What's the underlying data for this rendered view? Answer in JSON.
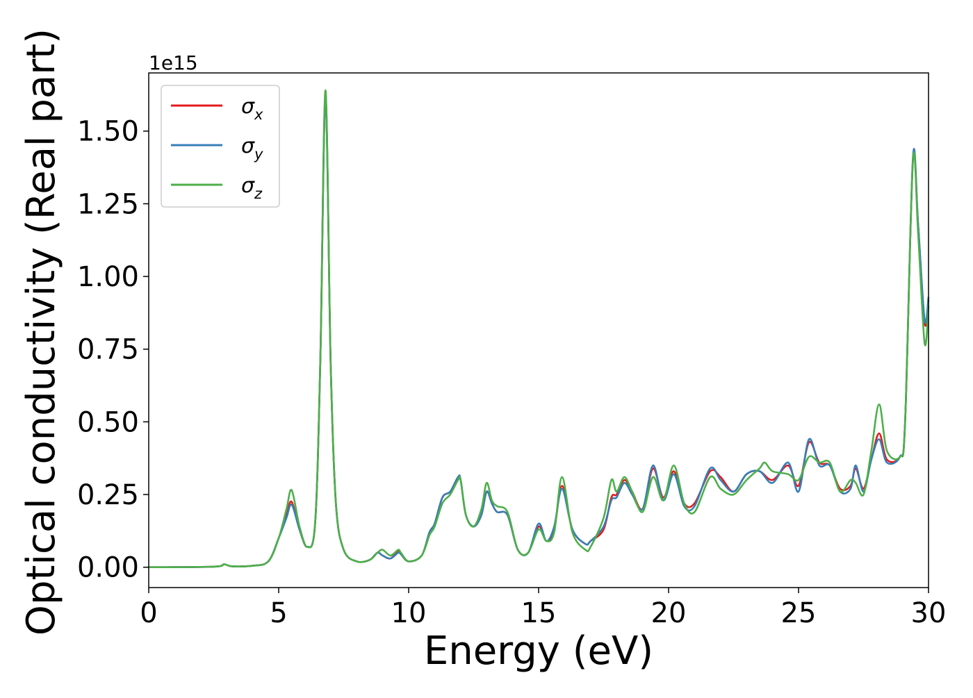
{
  "chart_data": {
    "type": "line",
    "xlabel": "Energy (eV)",
    "ylabel": "Optical conductivity (Real part)",
    "y_offset_text": "1e15",
    "xlim": [
      0,
      30
    ],
    "ylim": [
      -0.07,
      1.7
    ],
    "x_ticks": [
      0,
      5,
      10,
      15,
      20,
      25,
      30
    ],
    "x_tick_labels": [
      "0",
      "5",
      "10",
      "15",
      "20",
      "25",
      "30"
    ],
    "y_ticks": [
      0,
      0.25,
      0.5,
      0.75,
      1.0,
      1.25,
      1.5
    ],
    "y_tick_labels": [
      "0.00",
      "0.25",
      "0.50",
      "0.75",
      "1.00",
      "1.25",
      "1.50"
    ],
    "grid": false,
    "legend_position": "top-left",
    "series": [
      {
        "name": "σx",
        "name_base": "σ",
        "name_sub": "x",
        "color": "#e41a1c",
        "x": [
          0,
          2.5,
          2.9,
          3.2,
          4.0,
          4.6,
          5.0,
          5.3,
          5.5,
          5.8,
          6.1,
          6.4,
          6.6,
          6.8,
          7.0,
          7.2,
          7.5,
          8.0,
          8.5,
          8.8,
          9.0,
          9.3,
          9.6,
          9.7,
          10.0,
          10.5,
          10.8,
          11.0,
          11.3,
          11.6,
          11.9,
          12.0,
          12.2,
          12.5,
          12.8,
          13.0,
          13.2,
          13.4,
          13.8,
          14.2,
          14.6,
          15.0,
          15.3,
          15.6,
          15.9,
          16.3,
          16.8,
          17.0,
          17.5,
          17.8,
          18.0,
          18.3,
          18.6,
          19.0,
          19.4,
          19.8,
          20.2,
          20.6,
          21.0,
          21.6,
          22.0,
          22.5,
          23.0,
          23.5,
          24.0,
          24.6,
          25.0,
          25.4,
          25.8,
          26.2,
          26.6,
          27.0,
          27.2,
          27.5,
          27.8,
          28.1,
          28.4,
          28.9,
          29.1,
          29.4,
          29.6,
          29.85,
          30.0
        ],
        "y": [
          0,
          0.002,
          0.01,
          0.003,
          0.005,
          0.02,
          0.1,
          0.18,
          0.225,
          0.13,
          0.07,
          0.15,
          0.7,
          1.62,
          0.7,
          0.22,
          0.06,
          0.02,
          0.025,
          0.05,
          0.04,
          0.03,
          0.055,
          0.045,
          0.02,
          0.04,
          0.12,
          0.15,
          0.24,
          0.26,
          0.31,
          0.3,
          0.18,
          0.14,
          0.18,
          0.26,
          0.22,
          0.19,
          0.18,
          0.06,
          0.05,
          0.14,
          0.09,
          0.13,
          0.28,
          0.13,
          0.08,
          0.09,
          0.13,
          0.24,
          0.25,
          0.3,
          0.26,
          0.2,
          0.34,
          0.24,
          0.33,
          0.22,
          0.22,
          0.33,
          0.31,
          0.26,
          0.32,
          0.33,
          0.3,
          0.35,
          0.28,
          0.43,
          0.36,
          0.35,
          0.27,
          0.28,
          0.34,
          0.27,
          0.37,
          0.46,
          0.37,
          0.38,
          0.5,
          1.4,
          1.18,
          0.84,
          0.92
        ]
      },
      {
        "name": "σy",
        "name_base": "σ",
        "name_sub": "y",
        "color": "#377eb8",
        "x": [
          0,
          2.5,
          2.9,
          3.2,
          4.0,
          4.6,
          5.0,
          5.3,
          5.5,
          5.8,
          6.1,
          6.4,
          6.6,
          6.8,
          7.0,
          7.2,
          7.5,
          8.0,
          8.5,
          8.8,
          9.0,
          9.3,
          9.6,
          9.7,
          10.0,
          10.5,
          10.8,
          11.0,
          11.3,
          11.6,
          11.9,
          12.0,
          12.2,
          12.5,
          12.8,
          13.0,
          13.2,
          13.4,
          13.8,
          14.2,
          14.6,
          15.0,
          15.3,
          15.6,
          15.9,
          16.3,
          16.8,
          17.0,
          17.5,
          17.8,
          18.0,
          18.3,
          18.6,
          19.0,
          19.4,
          19.8,
          20.2,
          20.6,
          21.0,
          21.6,
          22.0,
          22.5,
          23.0,
          23.5,
          24.0,
          24.6,
          25.0,
          25.4,
          25.8,
          26.2,
          26.6,
          27.0,
          27.2,
          27.5,
          27.8,
          28.1,
          28.4,
          28.9,
          29.1,
          29.4,
          29.6,
          29.85,
          30.0
        ],
        "y": [
          0,
          0.002,
          0.01,
          0.003,
          0.005,
          0.02,
          0.1,
          0.17,
          0.215,
          0.13,
          0.07,
          0.15,
          0.7,
          1.61,
          0.7,
          0.22,
          0.06,
          0.02,
          0.025,
          0.05,
          0.04,
          0.03,
          0.05,
          0.045,
          0.02,
          0.04,
          0.12,
          0.15,
          0.24,
          0.26,
          0.31,
          0.3,
          0.18,
          0.14,
          0.18,
          0.26,
          0.22,
          0.19,
          0.18,
          0.06,
          0.05,
          0.15,
          0.09,
          0.14,
          0.27,
          0.13,
          0.08,
          0.09,
          0.14,
          0.23,
          0.24,
          0.29,
          0.25,
          0.2,
          0.35,
          0.23,
          0.32,
          0.21,
          0.21,
          0.34,
          0.3,
          0.26,
          0.32,
          0.33,
          0.29,
          0.36,
          0.26,
          0.44,
          0.35,
          0.35,
          0.26,
          0.27,
          0.35,
          0.26,
          0.37,
          0.44,
          0.36,
          0.38,
          0.5,
          1.41,
          1.18,
          0.85,
          0.93
        ]
      },
      {
        "name": "σz",
        "name_base": "σ",
        "name_sub": "z",
        "color": "#4daf4a",
        "x": [
          0,
          2.5,
          2.9,
          3.2,
          4.0,
          4.6,
          5.0,
          5.3,
          5.5,
          5.8,
          6.1,
          6.4,
          6.6,
          6.8,
          7.0,
          7.2,
          7.5,
          8.0,
          8.5,
          8.8,
          9.0,
          9.3,
          9.6,
          9.7,
          10.0,
          10.5,
          10.8,
          11.0,
          11.3,
          11.6,
          11.9,
          12.0,
          12.2,
          12.5,
          12.8,
          13.0,
          13.2,
          13.4,
          13.8,
          14.2,
          14.6,
          15.0,
          15.3,
          15.6,
          15.9,
          16.3,
          16.8,
          17.0,
          17.5,
          17.8,
          18.0,
          18.3,
          18.6,
          19.0,
          19.4,
          19.8,
          20.2,
          20.6,
          21.0,
          21.6,
          22.0,
          22.5,
          23.0,
          23.5,
          23.7,
          24.0,
          24.6,
          25.0,
          25.4,
          25.8,
          26.2,
          26.6,
          27.0,
          27.2,
          27.5,
          27.8,
          28.1,
          28.4,
          28.9,
          29.1,
          29.4,
          29.6,
          29.85,
          30.0
        ],
        "y": [
          0,
          0.002,
          0.01,
          0.003,
          0.005,
          0.02,
          0.1,
          0.2,
          0.265,
          0.14,
          0.07,
          0.15,
          0.7,
          1.64,
          0.7,
          0.22,
          0.06,
          0.02,
          0.025,
          0.05,
          0.06,
          0.04,
          0.06,
          0.05,
          0.02,
          0.04,
          0.11,
          0.14,
          0.22,
          0.25,
          0.3,
          0.3,
          0.18,
          0.14,
          0.2,
          0.29,
          0.23,
          0.21,
          0.19,
          0.06,
          0.05,
          0.13,
          0.09,
          0.12,
          0.31,
          0.12,
          0.06,
          0.07,
          0.17,
          0.3,
          0.26,
          0.31,
          0.26,
          0.19,
          0.31,
          0.23,
          0.35,
          0.22,
          0.19,
          0.31,
          0.27,
          0.25,
          0.3,
          0.34,
          0.36,
          0.33,
          0.32,
          0.3,
          0.38,
          0.36,
          0.36,
          0.26,
          0.3,
          0.29,
          0.25,
          0.4,
          0.56,
          0.4,
          0.38,
          0.5,
          1.4,
          1.15,
          0.77,
          0.9
        ]
      }
    ]
  }
}
